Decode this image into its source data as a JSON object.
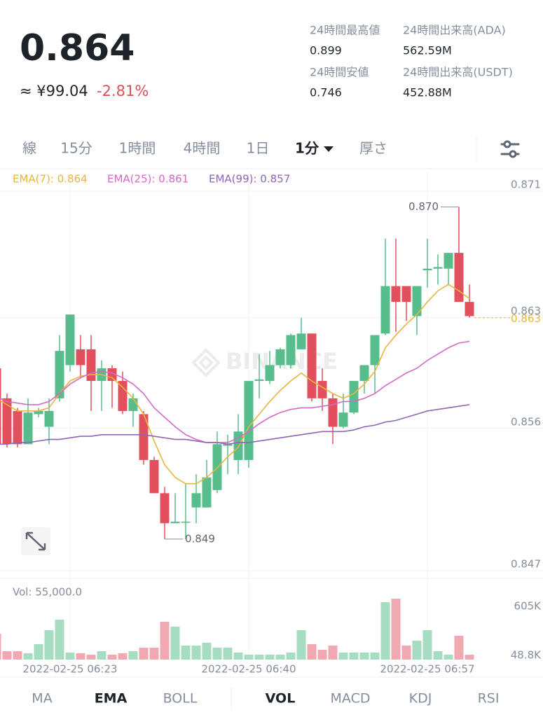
{
  "header": {
    "price": "0.864",
    "fiat_price": "≈ ¥99.04",
    "change": "-2.81%",
    "stats": [
      {
        "label": "24時間最高値",
        "value": "0.899"
      },
      {
        "label": "24時間出来高(ADA)",
        "value": "562.59M"
      },
      {
        "label": "24時間安値",
        "value": "0.746"
      },
      {
        "label": "24時間出来高(USDT)",
        "value": "452.88M"
      }
    ]
  },
  "toolbar": {
    "tabs": [
      "線",
      "15分",
      "1時間",
      "4時間",
      "1日",
      "1分",
      "厚さ"
    ],
    "active": 5
  },
  "chart_data": {
    "type": "candlestick",
    "watermark": "BINANCE",
    "categories": [
      null,
      null,
      null,
      null,
      null,
      null,
      null,
      "2022-02-25 06:23",
      null,
      null,
      null,
      null,
      null,
      null,
      null,
      null,
      null,
      null,
      null,
      null,
      null,
      null,
      null,
      null,
      "2022-02-25 06:40",
      null,
      null,
      null,
      null,
      null,
      null,
      null,
      null,
      null,
      null,
      null,
      null,
      null,
      null,
      null,
      null,
      "2022-02-25 06:57",
      null,
      null,
      null,
      null
    ],
    "ohlc": [
      [
        0.8598,
        0.86,
        0.8548,
        0.855
      ],
      [
        0.8579,
        0.8582,
        0.8548,
        0.855
      ],
      [
        0.8571,
        0.8573,
        0.8548,
        0.855
      ],
      [
        0.855,
        0.8579,
        0.855,
        0.857
      ],
      [
        0.8569,
        0.8573,
        0.8567,
        0.8571
      ],
      [
        0.8561,
        0.8579,
        0.855,
        0.8571
      ],
      [
        0.8579,
        0.8619,
        0.8577,
        0.8609
      ],
      [
        0.86,
        0.8632,
        0.8596,
        0.8632
      ],
      [
        0.861,
        0.8619,
        0.8592,
        0.86
      ],
      [
        0.861,
        0.8619,
        0.8571,
        0.859
      ],
      [
        0.859,
        0.8603,
        0.8571,
        0.8598
      ],
      [
        0.8598,
        0.86,
        0.8573,
        0.859
      ],
      [
        0.859,
        0.8596,
        0.8569,
        0.8571
      ],
      [
        0.8571,
        0.8582,
        0.8561,
        0.8579
      ],
      [
        0.8569,
        0.8571,
        0.8537,
        0.854
      ],
      [
        0.854,
        0.8542,
        0.8519,
        0.8519
      ],
      [
        0.8519,
        0.8523,
        0.849,
        0.85
      ],
      [
        0.85,
        0.8519,
        0.85,
        0.8501
      ],
      [
        0.8501,
        0.8525,
        0.849,
        0.8501
      ],
      [
        0.851,
        0.8531,
        0.85,
        0.8519
      ],
      [
        0.851,
        0.854,
        0.851,
        0.8529
      ],
      [
        0.8521,
        0.8558,
        0.8519,
        0.855
      ],
      [
        0.8549,
        0.8556,
        0.8531,
        0.855
      ],
      [
        0.854,
        0.8569,
        0.8531,
        0.8558
      ],
      [
        0.854,
        0.859,
        0.8535,
        0.859
      ],
      [
        0.859,
        0.8607,
        0.8579,
        0.8591
      ],
      [
        0.859,
        0.8609,
        0.8588,
        0.86
      ],
      [
        0.86,
        0.8611,
        0.8598,
        0.861
      ],
      [
        0.86,
        0.862,
        0.8598,
        0.8619
      ],
      [
        0.861,
        0.863,
        0.861,
        0.862
      ],
      [
        0.862,
        0.862,
        0.8577,
        0.8579
      ],
      [
        0.859,
        0.8598,
        0.8571,
        0.8579
      ],
      [
        0.8579,
        0.8582,
        0.855,
        0.8561
      ],
      [
        0.8561,
        0.8582,
        0.856,
        0.857
      ],
      [
        0.857,
        0.859,
        0.8569,
        0.859
      ],
      [
        0.859,
        0.86,
        0.8582,
        0.86
      ],
      [
        0.86,
        0.8619,
        0.8582,
        0.8619
      ],
      [
        0.862,
        0.868,
        0.8619,
        0.865
      ],
      [
        0.865,
        0.868,
        0.8621,
        0.864
      ],
      [
        0.865,
        0.865,
        0.8628,
        0.864
      ],
      [
        0.8631,
        0.865,
        0.8619,
        0.865
      ],
      [
        0.866,
        0.868,
        0.8649,
        0.8661
      ],
      [
        0.8661,
        0.867,
        0.8651,
        0.8662
      ],
      [
        0.8661,
        0.8671,
        0.8651,
        0.8671
      ],
      [
        0.8671,
        0.87,
        0.864,
        0.864
      ],
      [
        0.864,
        0.8651,
        0.863,
        0.8631
      ]
    ],
    "up_color": "#58bd8c",
    "down_color": "#e2505d",
    "series": [
      {
        "name": "EMA(7): 0.864",
        "color": "#e9b53c",
        "values": [
          0.8579,
          0.8575,
          0.8571,
          0.8571,
          0.8571,
          0.8573,
          0.8582,
          0.859,
          0.8593,
          0.8594,
          0.8594,
          0.8592,
          0.8586,
          0.8579,
          0.8569,
          0.8552,
          0.8537,
          0.8529,
          0.8525,
          0.8525,
          0.8529,
          0.8535,
          0.8542,
          0.8548,
          0.8561,
          0.8569,
          0.8577,
          0.8584,
          0.859,
          0.8595,
          0.859,
          0.8586,
          0.8582,
          0.8579,
          0.8582,
          0.8588,
          0.8596,
          0.8611,
          0.8619,
          0.8626,
          0.8632,
          0.864,
          0.8647,
          0.8651,
          0.8647,
          0.8642
        ]
      },
      {
        "name": "EMA(25): 0.861",
        "color": "#d36ac6",
        "values": [
          0.858,
          0.8577,
          0.8576,
          0.8575,
          0.8575,
          0.8577,
          0.8582,
          0.8588,
          0.8592,
          0.8595,
          0.8596,
          0.8595,
          0.8592,
          0.8588,
          0.8582,
          0.8573,
          0.8567,
          0.8561,
          0.8556,
          0.8553,
          0.8551,
          0.8551,
          0.8551,
          0.8554,
          0.8558,
          0.8563,
          0.8567,
          0.857,
          0.8572,
          0.8573,
          0.8573,
          0.8574,
          0.8575,
          0.8577,
          0.8577,
          0.8579,
          0.8582,
          0.8587,
          0.8591,
          0.8595,
          0.8598,
          0.8603,
          0.8607,
          0.8611,
          0.8614,
          0.8615
        ]
      },
      {
        "name": "EMA(99): 0.857",
        "color": "#8d66b6",
        "values": [
          0.855,
          0.855,
          0.8551,
          0.8551,
          0.8552,
          0.8553,
          0.8553,
          0.8554,
          0.8555,
          0.8555,
          0.8556,
          0.8556,
          0.8556,
          0.8556,
          0.8556,
          0.8555,
          0.8554,
          0.8553,
          0.8553,
          0.8552,
          0.8551,
          0.8551,
          0.855,
          0.8551,
          0.8551,
          0.8552,
          0.8553,
          0.8554,
          0.8555,
          0.8556,
          0.8557,
          0.8558,
          0.8558,
          0.8558,
          0.8559,
          0.8561,
          0.8562,
          0.8564,
          0.8565,
          0.8567,
          0.8569,
          0.8571,
          0.8572,
          0.8573,
          0.8574,
          0.8575
        ]
      }
    ],
    "ylim": [
      0.847,
      0.8722
    ],
    "yticks": [
      0.871,
      0.863,
      0.856,
      0.847
    ],
    "grid": true,
    "last_price": 0.863,
    "high_marker": {
      "value": 0.87,
      "label": "0.870"
    },
    "low_marker": {
      "value": 0.849,
      "label": "0.849"
    },
    "volume_label": "Vol: 55,000.0",
    "volume": [
      294000,
      95000,
      95000,
      72000,
      175000,
      334000,
      453000,
      80000,
      72000,
      56000,
      95000,
      56000,
      72000,
      95000,
      135000,
      135000,
      429000,
      374000,
      159000,
      159000,
      191000,
      135000,
      135000,
      80000,
      56000,
      56000,
      56000,
      56000,
      80000,
      334000,
      175000,
      111000,
      159000,
      80000,
      80000,
      80000,
      80000,
      652000,
      691000,
      159000,
      215000,
      334000,
      95000,
      56000,
      270000,
      55000
    ],
    "vol_up_color": "#a6dcc0",
    "vol_down_color": "#f0a9b0",
    "vol_ylim": [
      0,
      890000
    ],
    "vol_yticks": [
      {
        "value": 605000,
        "label": "605K"
      },
      {
        "value": 48800,
        "label": "48.8K"
      }
    ]
  },
  "bottom_tabs": {
    "tabs": [
      "MA",
      "EMA",
      "BOLL",
      "VOL",
      "MACD",
      "KDJ",
      "RSI"
    ],
    "active": [
      1,
      3
    ]
  }
}
